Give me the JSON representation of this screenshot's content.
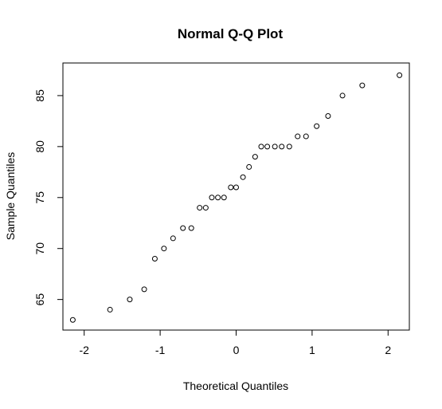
{
  "chart_data": {
    "type": "scatter",
    "title": "Normal Q-Q Plot",
    "xlabel": "Theoretical Quantiles",
    "ylabel": "Sample Quantiles",
    "xlim": [
      -2.28,
      2.28
    ],
    "ylim": [
      62.0,
      88.2
    ],
    "x_ticks": [
      -2,
      -1,
      0,
      1,
      2
    ],
    "y_ticks": [
      65,
      70,
      75,
      80,
      85
    ],
    "x_tick_labels": [
      "-2",
      "-1",
      "0",
      "1",
      "2"
    ],
    "y_tick_labels": [
      "65",
      "70",
      "75",
      "80",
      "85"
    ],
    "grid": false,
    "points": [
      {
        "x": -2.15,
        "y": 63
      },
      {
        "x": -1.66,
        "y": 64
      },
      {
        "x": -1.4,
        "y": 65
      },
      {
        "x": -1.21,
        "y": 66
      },
      {
        "x": -1.07,
        "y": 69
      },
      {
        "x": -0.95,
        "y": 70
      },
      {
        "x": -0.83,
        "y": 71
      },
      {
        "x": -0.7,
        "y": 72
      },
      {
        "x": -0.59,
        "y": 72
      },
      {
        "x": -0.48,
        "y": 74
      },
      {
        "x": -0.4,
        "y": 74
      },
      {
        "x": -0.32,
        "y": 75
      },
      {
        "x": -0.24,
        "y": 75
      },
      {
        "x": -0.16,
        "y": 75
      },
      {
        "x": -0.07,
        "y": 76
      },
      {
        "x": 0.0,
        "y": 76
      },
      {
        "x": 0.09,
        "y": 77
      },
      {
        "x": 0.17,
        "y": 78
      },
      {
        "x": 0.25,
        "y": 79
      },
      {
        "x": 0.33,
        "y": 80
      },
      {
        "x": 0.41,
        "y": 80
      },
      {
        "x": 0.51,
        "y": 80
      },
      {
        "x": 0.6,
        "y": 80
      },
      {
        "x": 0.7,
        "y": 80
      },
      {
        "x": 0.81,
        "y": 81
      },
      {
        "x": 0.92,
        "y": 81
      },
      {
        "x": 1.06,
        "y": 82
      },
      {
        "x": 1.21,
        "y": 83
      },
      {
        "x": 1.4,
        "y": 85
      },
      {
        "x": 1.66,
        "y": 86
      },
      {
        "x": 2.15,
        "y": 87
      }
    ]
  }
}
